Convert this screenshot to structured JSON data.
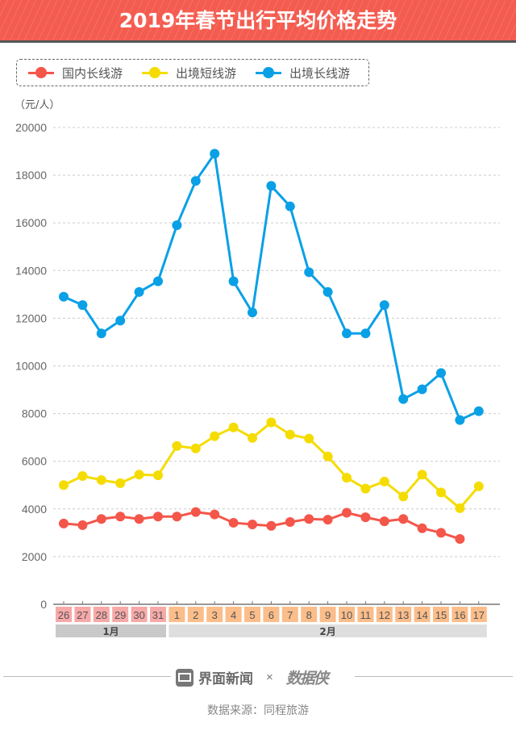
{
  "header": {
    "title": "2019年春节出行平均价格走势"
  },
  "legend": [
    {
      "label": "国内长线游",
      "color": "#f4564a"
    },
    {
      "label": "出境短线游",
      "color": "#f5dc00"
    },
    {
      "label": "出境长线游",
      "color": "#0aa0e6"
    }
  ],
  "unit_label": "（元/人）",
  "chart_data": {
    "type": "line",
    "title": "2019年春节出行平均价格走势",
    "ylabel": "（元/人）",
    "xlabel": "",
    "ylim": [
      0,
      20000
    ],
    "yticks": [
      0,
      2000,
      4000,
      6000,
      8000,
      10000,
      12000,
      14000,
      16000,
      18000,
      20000
    ],
    "grid": true,
    "legend_position": "top-left",
    "x": [
      "26",
      "27",
      "28",
      "29",
      "30",
      "31",
      "1",
      "2",
      "3",
      "4",
      "5",
      "6",
      "7",
      "8",
      "9",
      "10",
      "11",
      "12",
      "13",
      "14",
      "15",
      "16",
      "17"
    ],
    "months": [
      {
        "label": "1月",
        "count": 6,
        "color": "#f7a9a8",
        "bar_color": "#c9c9c9"
      },
      {
        "label": "2月",
        "count": 17,
        "color": "#fbbd8a",
        "bar_color": "#dedede"
      }
    ],
    "series": [
      {
        "name": "国内长线游",
        "color": "#f4564a",
        "values": [
          3390,
          3320,
          3580,
          3680,
          3580,
          3680,
          3680,
          3870,
          3770,
          3420,
          3350,
          3290,
          3450,
          3580,
          3550,
          3840,
          3650,
          3480,
          3580,
          3190,
          3000,
          2740,
          null
        ]
      },
      {
        "name": "出境短线游",
        "color": "#f5dc00",
        "values": [
          5000,
          5380,
          5210,
          5080,
          5440,
          5410,
          6640,
          6540,
          7050,
          7420,
          6980,
          7630,
          7120,
          6950,
          6200,
          5310,
          4850,
          5150,
          4520,
          5440,
          4690,
          4030,
          4950
        ]
      },
      {
        "name": "出境长线游",
        "color": "#0aa0e6",
        "values": [
          12900,
          12550,
          11360,
          11900,
          13100,
          13550,
          15900,
          17760,
          18900,
          13550,
          12240,
          17550,
          16690,
          13930,
          13100,
          11360,
          11360,
          12550,
          8610,
          9020,
          9700,
          7730,
          8100
        ]
      }
    ]
  },
  "footer": {
    "brand": "界面新闻",
    "times": "×",
    "partner": "数据侠",
    "source": "数据来源：同程旅游"
  }
}
